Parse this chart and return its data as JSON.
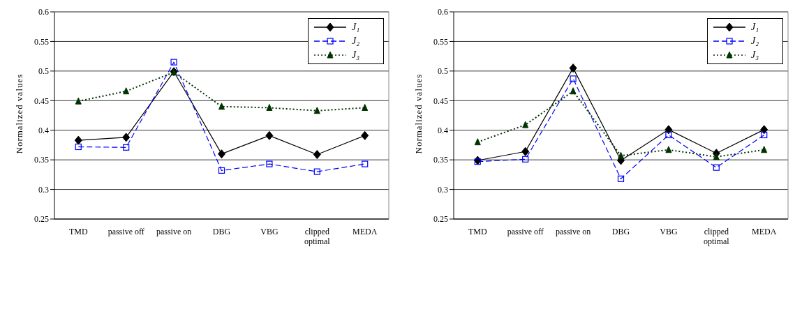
{
  "chart_data": [
    {
      "type": "line",
      "ylabel": "Normalized values",
      "categories": [
        "TMD",
        "passive off",
        "passive on",
        "DBG",
        "VBG",
        "clipped optimal",
        "MEDA"
      ],
      "ylim": [
        0.25,
        0.6
      ],
      "yticks": [
        0.25,
        0.3,
        0.35,
        0.4,
        0.45,
        0.5,
        0.55,
        0.6
      ],
      "grid": "y",
      "legend": "top right",
      "series": [
        {
          "name": "J₁",
          "color": "#000000",
          "marker": "diamond",
          "line_style": "solid",
          "values": [
            0.383,
            0.388,
            0.499,
            0.36,
            0.391,
            0.359,
            0.391
          ]
        },
        {
          "name": "J₂",
          "color": "#0000ff",
          "marker": "square",
          "line_style": "dashed",
          "values": [
            0.372,
            0.371,
            0.515,
            0.332,
            0.343,
            0.33,
            0.343
          ]
        },
        {
          "name": "J₃",
          "color": "#003300",
          "marker": "triangle",
          "line_style": "dotted",
          "values": [
            0.449,
            0.466,
            0.498,
            0.44,
            0.438,
            0.433,
            0.438
          ]
        }
      ]
    },
    {
      "type": "line",
      "ylabel": "Normalized values",
      "categories": [
        "TMD",
        "passive off",
        "passive on",
        "DBG",
        "VBG",
        "clipped optimal",
        "MEDA"
      ],
      "ylim": [
        0.25,
        0.6
      ],
      "yticks": [
        0.25,
        0.3,
        0.35,
        0.4,
        0.45,
        0.5,
        0.55,
        0.6
      ],
      "grid": "y",
      "legend": "top right",
      "series": [
        {
          "name": "J₁",
          "color": "#000000",
          "marker": "diamond",
          "line_style": "solid",
          "values": [
            0.349,
            0.364,
            0.505,
            0.349,
            0.401,
            0.361,
            0.401
          ]
        },
        {
          "name": "J₂",
          "color": "#0000ff",
          "marker": "square",
          "line_style": "dashed",
          "values": [
            0.347,
            0.351,
            0.487,
            0.318,
            0.392,
            0.337,
            0.392
          ]
        },
        {
          "name": "J₃",
          "color": "#003300",
          "marker": "triangle",
          "line_style": "dotted",
          "values": [
            0.38,
            0.409,
            0.466,
            0.357,
            0.367,
            0.355,
            0.367
          ]
        }
      ]
    }
  ]
}
